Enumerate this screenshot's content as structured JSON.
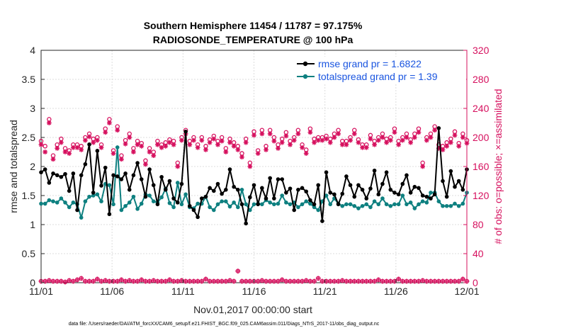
{
  "chart_data": {
    "type": "line",
    "title": [
      "Southern Hemisphere 11454 / 11787 = 97.175%",
      "RADIOSONDE_TEMPERATURE @ 100 hPa"
    ],
    "xlabel": "Nov.01,2017 00:00:00 start",
    "ylabel_left": "rmse and totalspread",
    "ylabel_right": "# of obs: o=possible; ×=assimilated",
    "footer": "data file: /Users/raeder/DAI/ATM_forcXX/CAM6_setup/f.e21.FHIST_BGC.f09_025.CAM6assim.011/Diags_NTrS_2017-11/obs_diag_output.nc",
    "xlim": [
      0,
      30
    ],
    "ylim_left": [
      0,
      4
    ],
    "ylim_right": [
      0,
      320
    ],
    "x_ticks": [
      0,
      5,
      10,
      15,
      20,
      25,
      30
    ],
    "x_tick_labels": [
      "11/01",
      "11/06",
      "11/11",
      "11/16",
      "11/21",
      "11/26",
      "12/01"
    ],
    "y_ticks_left": [
      "0",
      "0.5",
      "1",
      "1.5",
      "2",
      "2.5",
      "3",
      "3.5",
      "4"
    ],
    "y_ticks_right": [
      "0",
      "40",
      "80",
      "120",
      "160",
      "200",
      "240",
      "280",
      "320"
    ],
    "colors": {
      "rmse": "#000000",
      "spread": "#0e8080",
      "obs": "#d6105e"
    },
    "series": [
      {
        "name": "rmse grand pr = 1.6822",
        "color": "#000000",
        "values": [
          1.9,
          1.95,
          1.72,
          1.88,
          1.85,
          1.82,
          1.87,
          1.58,
          1.88,
          1.25,
          1.85,
          2.04,
          2.38,
          1.55,
          2.27,
          1.67,
          1.98,
          1.18,
          1.85,
          1.83,
          1.78,
          1.88,
          1.6,
          1.85,
          2.06,
          1.78,
          1.48,
          1.95,
          1.68,
          1.35,
          1.82,
          1.6,
          1.75,
          1.45,
          1.38,
          1.7,
          2.6,
          1.32,
          1.25,
          1.13,
          1.45,
          1.48,
          1.63,
          1.58,
          1.7,
          1.53,
          1.6,
          1.95,
          1.65,
          1.6,
          1.35,
          1.02,
          1.47,
          1.68,
          1.35,
          1.63,
          1.45,
          1.8,
          1.45,
          1.78,
          1.78,
          1.55,
          1.62,
          1.25,
          1.6,
          1.63,
          1.57,
          1.42,
          1.35,
          1.68,
          1.06,
          1.9,
          1.55,
          1.52,
          1.35,
          1.53,
          1.83,
          1.68,
          1.48,
          1.68,
          1.6,
          1.45,
          1.62,
          1.93,
          1.52,
          1.7,
          1.9,
          1.6,
          1.55,
          1.52,
          1.7,
          1.85,
          1.55,
          1.65,
          1.63,
          1.5,
          1.48,
          1.45,
          1.52,
          2.66,
          1.75,
          1.48,
          1.92,
          1.65,
          1.75,
          1.6,
          1.95
        ]
      },
      {
        "name": "totalspread grand pr = 1.39",
        "color": "#0e8080",
        "values": [
          1.36,
          1.36,
          1.42,
          1.4,
          1.38,
          1.45,
          1.38,
          1.3,
          1.38,
          1.35,
          1.12,
          1.4,
          1.48,
          1.5,
          1.52,
          1.4,
          1.7,
          1.68,
          1.35,
          2.33,
          1.25,
          1.32,
          1.38,
          1.48,
          1.27,
          1.36,
          1.52,
          1.5,
          1.4,
          1.38,
          1.47,
          1.62,
          1.37,
          1.3,
          1.72,
          1.35,
          1.52,
          1.3,
          1.28,
          1.36,
          1.36,
          1.48,
          1.3,
          1.25,
          1.35,
          1.4,
          1.4,
          1.31,
          1.38,
          1.3,
          1.6,
          1.35,
          1.25,
          1.35,
          1.36,
          1.35,
          1.42,
          1.38,
          1.35,
          1.36,
          1.5,
          1.38,
          1.35,
          1.38,
          1.3,
          1.35,
          1.4,
          1.36,
          1.3,
          1.25,
          1.4,
          1.5,
          1.35,
          1.45,
          1.36,
          1.32,
          1.35,
          1.35,
          1.32,
          1.28,
          1.32,
          1.35,
          1.3,
          1.4,
          1.35,
          1.45,
          1.35,
          1.32,
          1.35,
          1.35,
          1.5,
          1.35,
          1.38,
          1.28,
          1.35,
          1.4,
          1.38,
          1.55,
          1.55,
          1.4,
          1.32,
          1.32,
          1.32,
          1.36,
          1.32,
          1.36,
          1.55
        ]
      },
      {
        "name": "obs possible",
        "color": "#d6105e",
        "values": [
          195,
          188,
          225,
          175,
          190,
          198,
          185,
          182,
          190,
          190,
          188,
          200,
          205,
          198,
          200,
          190,
          212,
          225,
          182,
          215,
          175,
          196,
          205,
          185,
          195,
          192,
          168,
          185,
          180,
          195,
          190,
          193,
          197,
          195,
          165,
          200,
          210,
          195,
          200,
          190,
          200,
          188,
          197,
          202,
          195,
          200,
          185,
          198,
          193,
          188,
          178,
          198,
          165,
          208,
          182,
          210,
          188,
          210,
          200,
          190,
          198,
          207,
          195,
          200,
          210,
          190,
          183,
          212,
          198,
          200,
          200,
          202,
          198,
          205,
          210,
          195,
          195,
          200,
          210,
          197,
          190,
          190,
          203,
          195,
          200,
          205,
          198,
          200,
          212,
          195,
          200,
          205,
          197,
          205,
          212,
          165,
          200,
          205,
          215,
          190,
          188,
          193,
          198,
          208,
          192,
          205,
          196
        ]
      },
      {
        "name": "obs assimilated",
        "color": "#d6105e",
        "values": [
          190,
          180,
          220,
          170,
          185,
          193,
          180,
          178,
          186,
          186,
          183,
          196,
          201,
          193,
          196,
          186,
          207,
          220,
          178,
          210,
          170,
          191,
          200,
          180,
          190,
          188,
          163,
          180,
          175,
          190,
          186,
          188,
          193,
          190,
          160,
          196,
          205,
          190,
          196,
          186,
          196,
          183,
          193,
          198,
          190,
          195,
          180,
          193,
          188,
          183,
          173,
          193,
          160,
          203,
          178,
          205,
          183,
          205,
          195,
          185,
          193,
          202,
          190,
          196,
          205,
          186,
          178,
          207,
          193,
          196,
          196,
          198,
          193,
          200,
          205,
          190,
          190,
          196,
          205,
          193,
          186,
          186,
          198,
          190,
          196,
          200,
          193,
          196,
          207,
          190,
          196,
          200,
          193,
          200,
          207,
          160,
          196,
          200,
          210,
          185,
          183,
          188,
          193,
          203,
          188,
          200,
          192
        ]
      },
      {
        "name": "obs near zero",
        "color": "#d6105e",
        "values": [
          2,
          2,
          3,
          2,
          2,
          2,
          1,
          3,
          2,
          4,
          6,
          2,
          2,
          2,
          5,
          2,
          3,
          2,
          2,
          2,
          4,
          2,
          3,
          2,
          2,
          4,
          2,
          2,
          3,
          2,
          2,
          2,
          4,
          2,
          2,
          3,
          2,
          2,
          2,
          2,
          2,
          5,
          2,
          2,
          2,
          2,
          2,
          3,
          2,
          16,
          2,
          2,
          2,
          2,
          2,
          3,
          2,
          2,
          2,
          2,
          4,
          2,
          2,
          2,
          2,
          2,
          3,
          2,
          2,
          6,
          2,
          2,
          2,
          2,
          2,
          3,
          2,
          2,
          2,
          2,
          2,
          2,
          2,
          2,
          4,
          2,
          2,
          2,
          2,
          5,
          2,
          2,
          2,
          2,
          2,
          3,
          2,
          2,
          2,
          2,
          2,
          2,
          2,
          2,
          2,
          5,
          2
        ]
      }
    ]
  }
}
